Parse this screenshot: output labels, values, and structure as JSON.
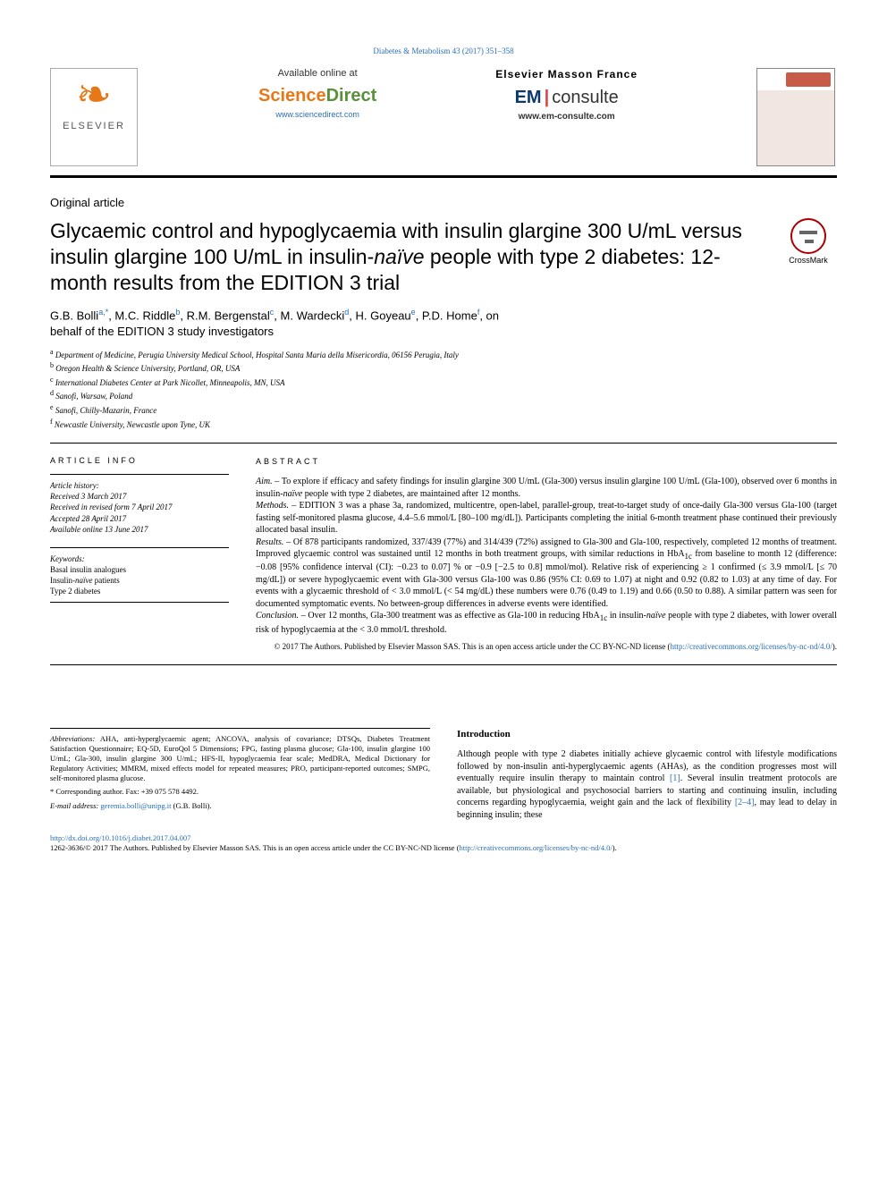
{
  "header": {
    "top_link": "Diabetes & Metabolism 43 (2017) 351–358",
    "available_at": "Available online at",
    "sd_science": "Science",
    "sd_direct": "Direct",
    "sd_url": "www.sciencedirect.com",
    "masson_name": "Elsevier Masson France",
    "em_blue": "EM",
    "em_consulte": "consulte",
    "em_url": "www.em-consulte.com",
    "elsevier_label": "ELSEVIER",
    "crossmark": "CrossMark"
  },
  "article": {
    "category": "Original article",
    "title_pre": "Glycaemic control and hypoglycaemia with insulin glargine 300 U/mL versus insulin glargine 100 U/mL in insulin-",
    "title_naive": "naïve",
    "title_post": " people with type 2 diabetes: 12-month results from the EDITION 3 trial",
    "authors_html": "G.B. Bolli",
    "author_a_sup": "a,*",
    "author_2": ", M.C. Riddle",
    "author_b_sup": "b",
    "author_3": ", R.M. Bergenstal",
    "author_c_sup": "c",
    "author_4": ", M. Wardecki",
    "author_d_sup": "d",
    "author_5": ", H. Goyeau",
    "author_e_sup": "e",
    "author_6": ", P.D. Home",
    "author_f_sup": "f",
    "author_tail": ", on",
    "behalf": "behalf of the EDITION 3 study investigators"
  },
  "affiliations": {
    "a": "Department of Medicine, Perugia University Medical School, Hospital Santa Maria della Misericordia, 06156 Perugia, Italy",
    "b": "Oregon Health & Science University, Portland, OR, USA",
    "c": "International Diabetes Center at Park Nicollet, Minneapolis, MN, USA",
    "d": "Sanofi, Warsaw, Poland",
    "e": "Sanofi, Chilly-Mazarin, France",
    "f": "Newcastle University, Newcastle upon Tyne, UK"
  },
  "article_info": {
    "section_title": "ARTICLE INFO",
    "history_head": "Article history:",
    "received": "Received 3 March 2017",
    "revised": "Received in revised form 7 April 2017",
    "accepted": "Accepted 28 April 2017",
    "online": "Available online 13 June 2017",
    "keywords_head": "Keywords:",
    "kw1": "Basal insulin analogues",
    "kw2": "Insulin-naïve patients",
    "kw3": "Type 2 diabetes"
  },
  "abstract": {
    "section_title": "ABSTRACT",
    "aim_label": "Aim. – ",
    "aim_text": "To explore if efficacy and safety findings for insulin glargine 300 U/mL (Gla-300) versus insulin glargine 100 U/mL (Gla-100), observed over 6 months in insulin-naïve people with type 2 diabetes, are maintained after 12 months.",
    "methods_label": "Methods. – ",
    "methods_text": "EDITION 3 was a phase 3a, randomized, multicentre, open-label, parallel-group, treat-to-target study of once-daily Gla-300 versus Gla-100 (target fasting self-monitored plasma glucose, 4.4–5.6 mmol/L [80–100 mg/dL]). Participants completing the initial 6-month treatment phase continued their previously allocated basal insulin.",
    "results_label": "Results. – ",
    "results_text": "Of 878 participants randomized, 337/439 (77%) and 314/439 (72%) assigned to Gla-300 and Gla-100, respectively, completed 12 months of treatment. Improved glycaemic control was sustained until 12 months in both treatment groups, with similar reductions in HbA",
    "results_1c": "1c",
    "results_text2": " from baseline to month 12 (difference: −0.08 [95% confidence interval (CI): −0.23 to 0.07] % or −0.9 [−2.5 to 0.8] mmol/mol). Relative risk of experiencing ≥ 1 confirmed (≤ 3.9 mmol/L [≤ 70 mg/dL]) or severe hypoglycaemic event with Gla-300 versus Gla-100 was 0.86 (95% CI: 0.69 to 1.07) at night and 0.92 (0.82 to 1.03) at any time of day. For events with a glycaemic threshold of < 3.0 mmol/L (< 54 mg/dL) these numbers were 0.76 (0.49 to 1.19) and 0.66 (0.50 to 0.88). A similar pattern was seen for documented symptomatic events. No between-group differences in adverse events were identified.",
    "conclusion_label": "Conclusion. – ",
    "conclusion_text": "Over 12 months, Gla-300 treatment was as effective as Gla-100 in reducing HbA",
    "conclusion_1c": "1c",
    "conclusion_text2": " in insulin-naïve people with type 2 diabetes, with lower overall risk of hypoglycaemia at the < 3.0 mmol/L threshold.",
    "copyright": "© 2017 The Authors. Published by Elsevier Masson SAS. This is an open access article under the CC BY-NC-ND license (",
    "cc_url": "http://creativecommons.org/licenses/by-nc-nd/4.0/",
    "copyright_close": ")."
  },
  "intro": {
    "heading": "Introduction",
    "para1_a": "Although people with type 2 diabetes initially achieve glycaemic control with lifestyle modifications followed by non-insulin anti-hyperglycaemic agents (AHAs), as the condition progresses most will eventually require insulin therapy to maintain control ",
    "ref1": "[1]",
    "para1_b": ". Several insulin treatment protocols are available, but physiological and psychosocial barriers to starting and continuing insulin, including concerns regarding hypoglycaemia, weight gain and the lack of flexibility ",
    "ref24": "[2–4]",
    "para1_c": ", may lead to delay in beginning insulin; these"
  },
  "abbrev": {
    "head": "Abbreviations:",
    "text": " AHA, anti-hyperglycaemic agent; ANCOVA, analysis of covariance; DTSQs, Diabetes Treatment Satisfaction Questionnaire; EQ-5D, EuroQol 5 Dimensions; FPG, fasting plasma glucose; Gla-100, insulin glargine 100 U/mL; Gla-300, insulin glargine 300 U/mL; HFS-II, hypoglycaemia fear scale; MedDRA, Medical Dictionary for Regulatory Activities; MMRM, mixed effects model for repeated measures; PRO, participant-reported outcomes; SMPG, self-monitored plasma glucose."
  },
  "footnotes": {
    "corresp": "* Corresponding author. Fax: +39 075 578 4492.",
    "email_label": "E-mail address: ",
    "email": "geremia.bolli@unipg.it",
    "email_tail": " (G.B. Bolli)."
  },
  "doi": {
    "url": "http://dx.doi.org/10.1016/j.diabet.2017.04.007",
    "issn_line": "1262-3636/© 2017 The Authors. Published by Elsevier Masson SAS. This is an open access article under the CC BY-NC-ND license (",
    "cc_url": "http://creativecommons.org/licenses/by-nc-nd/4.0/",
    "close": ")."
  },
  "colors": {
    "link": "#2a6fb5",
    "orange": "#e67817",
    "green": "#5a8f3c",
    "red": "#d94545",
    "darkblue": "#0a3a6b"
  }
}
